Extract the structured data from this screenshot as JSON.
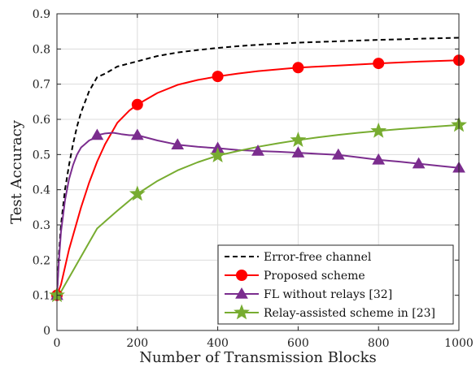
{
  "chart_data": {
    "type": "line",
    "xlabel": "Number of Transmission Blocks",
    "ylabel": "Test Accuracy",
    "xlim": [
      0,
      1000
    ],
    "ylim": [
      0,
      0.9
    ],
    "xticks": [
      0,
      200,
      400,
      600,
      800,
      1000
    ],
    "yticks": [
      0,
      0.1,
      0.2,
      0.3,
      0.4,
      0.5,
      0.6,
      0.7,
      0.8,
      0.9
    ],
    "xtick_labels": [
      "0",
      "200",
      "400",
      "600",
      "800",
      "1000"
    ],
    "ytick_labels": [
      "0",
      "0.1",
      "0.2",
      "0.3",
      "0.4",
      "0.5",
      "0.6",
      "0.7",
      "0.8",
      "0.9"
    ],
    "grid": true,
    "legend_position": "bottom-right",
    "series": [
      {
        "name": "Error-free channel",
        "color": "#000000",
        "dash": "dashed",
        "marker": "none",
        "x": [
          0,
          5,
          10,
          20,
          30,
          40,
          50,
          60,
          70,
          80,
          90,
          100,
          120,
          150,
          200,
          250,
          300,
          350,
          400,
          450,
          500,
          600,
          700,
          800,
          900,
          1000
        ],
        "y": [
          0.1,
          0.22,
          0.3,
          0.4,
          0.47,
          0.53,
          0.58,
          0.62,
          0.65,
          0.68,
          0.7,
          0.72,
          0.73,
          0.75,
          0.765,
          0.78,
          0.79,
          0.797,
          0.803,
          0.808,
          0.812,
          0.818,
          0.822,
          0.826,
          0.829,
          0.832
        ],
        "marker_x": []
      },
      {
        "name": "Proposed scheme",
        "color": "#ff0000",
        "dash": "solid",
        "marker": "circle",
        "x": [
          0,
          10,
          20,
          30,
          40,
          50,
          60,
          80,
          100,
          120,
          150,
          180,
          200,
          250,
          300,
          350,
          400,
          450,
          500,
          600,
          700,
          800,
          900,
          1000
        ],
        "y": [
          0.1,
          0.13,
          0.18,
          0.23,
          0.27,
          0.31,
          0.35,
          0.42,
          0.48,
          0.53,
          0.59,
          0.625,
          0.642,
          0.675,
          0.698,
          0.712,
          0.722,
          0.73,
          0.737,
          0.747,
          0.753,
          0.759,
          0.764,
          0.768
        ],
        "marker_x": [
          0,
          200,
          400,
          600,
          800,
          1000
        ],
        "marker_y": [
          0.1,
          0.642,
          0.722,
          0.747,
          0.759,
          0.768
        ]
      },
      {
        "name": "FL without relays [32]",
        "color": "#7b2d8e",
        "dash": "solid",
        "marker": "triangle",
        "x": [
          0,
          5,
          10,
          20,
          30,
          40,
          50,
          60,
          70,
          80,
          90,
          100,
          120,
          140,
          160,
          180,
          200,
          250,
          300,
          350,
          400,
          450,
          500,
          550,
          600,
          650,
          700,
          750,
          800,
          850,
          900,
          950,
          1000
        ],
        "y": [
          0.1,
          0.2,
          0.28,
          0.37,
          0.43,
          0.47,
          0.5,
          0.52,
          0.53,
          0.54,
          0.545,
          0.555,
          0.56,
          0.562,
          0.558,
          0.555,
          0.555,
          0.54,
          0.528,
          0.522,
          0.518,
          0.513,
          0.51,
          0.508,
          0.505,
          0.502,
          0.499,
          0.492,
          0.485,
          0.48,
          0.474,
          0.468,
          0.462
        ],
        "marker_x": [
          0,
          100,
          200,
          300,
          400,
          500,
          600,
          700,
          800,
          900,
          1000
        ],
        "marker_y": [
          0.1,
          0.555,
          0.555,
          0.528,
          0.518,
          0.51,
          0.505,
          0.499,
          0.485,
          0.474,
          0.462
        ]
      },
      {
        "name": "Relay-assisted scheme in [23]",
        "color": "#77ac30",
        "dash": "solid",
        "marker": "star",
        "x": [
          0,
          10,
          20,
          30,
          40,
          50,
          60,
          80,
          100,
          120,
          150,
          200,
          250,
          300,
          350,
          400,
          450,
          500,
          550,
          600,
          650,
          700,
          750,
          800,
          850,
          900,
          950,
          1000
        ],
        "y": [
          0.1,
          0.11,
          0.13,
          0.15,
          0.17,
          0.19,
          0.21,
          0.25,
          0.29,
          0.31,
          0.34,
          0.388,
          0.425,
          0.455,
          0.478,
          0.497,
          0.51,
          0.522,
          0.532,
          0.541,
          0.549,
          0.556,
          0.562,
          0.567,
          0.572,
          0.576,
          0.58,
          0.584
        ],
        "marker_x": [
          0,
          200,
          400,
          600,
          800,
          1000
        ],
        "marker_y": [
          0.1,
          0.388,
          0.497,
          0.541,
          0.567,
          0.584
        ]
      }
    ]
  }
}
